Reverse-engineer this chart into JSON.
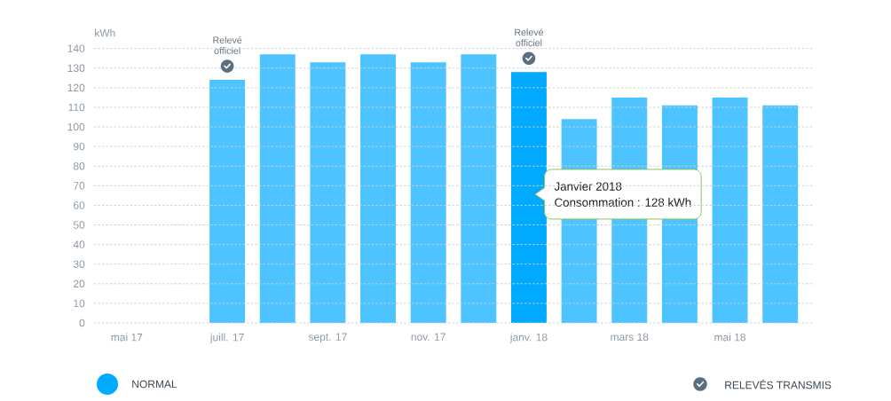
{
  "chart_data": {
    "type": "bar",
    "ylabel": "kWh",
    "categories": [
      "mai 17",
      null,
      "juill. 17",
      null,
      "sept. 17",
      null,
      "nov. 17",
      null,
      "janv. 18",
      null,
      "mars 18",
      null,
      "mai 18",
      null
    ],
    "series": [
      {
        "name": "NORMAL",
        "color": "#00aaff",
        "colors": [
          "#4dc3ff",
          "#4dc3ff",
          "#4dc3ff",
          "#4dc3ff",
          "#4dc3ff",
          "#4dc3ff",
          "#4dc3ff",
          "#4dc3ff",
          "#00aaff",
          "#4dc3ff",
          "#4dc3ff",
          "#4dc3ff",
          "#4dc3ff",
          "#4dc3ff"
        ],
        "values": [
          null,
          null,
          124,
          137,
          133,
          137,
          133,
          137,
          128,
          104,
          115,
          111,
          115,
          111
        ]
      },
      {
        "name": "RELEVÉS TRANSMIS",
        "type": "scatter",
        "color": "#5b6e7e",
        "x": [
          "juill. 17",
          "janv. 18"
        ],
        "values": [
          131,
          135
        ]
      }
    ],
    "ylim": [
      0,
      140
    ],
    "yticks": [
      0,
      10,
      20,
      30,
      40,
      50,
      60,
      70,
      80,
      90,
      100,
      110,
      120,
      130,
      140
    ],
    "grid": "y",
    "legend": "bottom",
    "marker": "circle",
    "annotations": [
      {
        "text": "Relevé officiel",
        "x": "juill. 17",
        "y": 131
      },
      {
        "text": "Relevé officiel",
        "x": "janv. 18",
        "y": 135
      },
      "Janvier 2018",
      "Consommation : 128 kWh"
    ]
  }
}
